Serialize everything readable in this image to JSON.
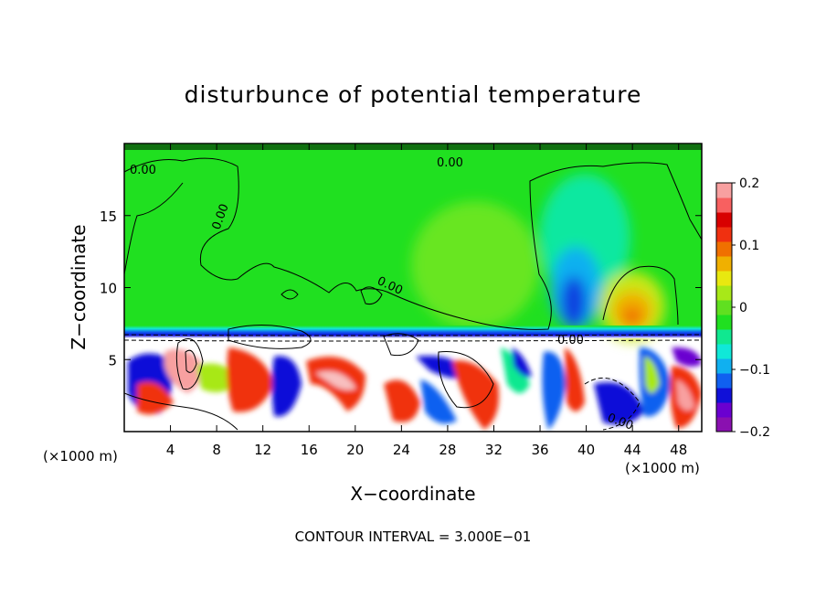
{
  "chart_data": {
    "type": "heatmap",
    "title": "disturbunce of potential temperature",
    "xlabel": "X−coordinate",
    "ylabel": "Z−coordinate",
    "x_unit_left": "(×1000 m)",
    "x_unit_right": "(×1000 m)",
    "xlim": [
      0,
      50
    ],
    "ylim": [
      0,
      20
    ],
    "xticks": [
      4,
      8,
      12,
      16,
      20,
      24,
      28,
      32,
      36,
      40,
      44,
      48
    ],
    "xtick_labels": [
      "4",
      "8",
      "12",
      "16",
      "20",
      "24",
      "28",
      "32",
      "36",
      "40",
      "44",
      "48"
    ],
    "yticks": [
      5,
      10,
      15
    ],
    "ytick_labels": [
      "5",
      "10",
      "15"
    ],
    "colorbar": {
      "min": -0.2,
      "max": 0.2,
      "ticks": [
        0.2,
        0.1,
        0,
        -0.1,
        -0.2
      ],
      "tick_labels": [
        "0.2",
        "0.1",
        "0",
        "−0.1",
        "−0.2"
      ],
      "colors": [
        "#8a10b0",
        "#6a00d0",
        "#1010d8",
        "#1060f0",
        "#10b0f0",
        "#10e8d8",
        "#10e890",
        "#20e020",
        "#60e020",
        "#a8e818",
        "#e8e810",
        "#f0b000",
        "#f07000",
        "#f03010",
        "#d80000",
        "#f86060",
        "#f8a0a0"
      ]
    },
    "contour_labels": [
      "0.00",
      "0.00",
      "0.00",
      "0.00",
      "0.00",
      "0.00"
    ],
    "annotation": "CONTOUR INTERVAL = 3.000E−01",
    "regions": [
      {
        "x": [
          0,
          50
        ],
        "z": [
          7.5,
          20
        ],
        "value": 0.0
      },
      {
        "x": [
          23,
          32
        ],
        "z": [
          8,
          17
        ],
        "value": 0.03
      },
      {
        "x": [
          36,
          41
        ],
        "z": [
          8,
          18
        ],
        "value": -0.08
      },
      {
        "x": [
          41.5,
          46.5
        ],
        "z": [
          7.5,
          11.5
        ],
        "value": 0.09
      },
      {
        "x": [
          0,
          50
        ],
        "z": [
          7,
          7.5
        ],
        "value": -0.15
      },
      {
        "x": [
          0,
          50
        ],
        "z": [
          0,
          6.5
        ],
        "value": "mixed ±0.2"
      }
    ]
  }
}
